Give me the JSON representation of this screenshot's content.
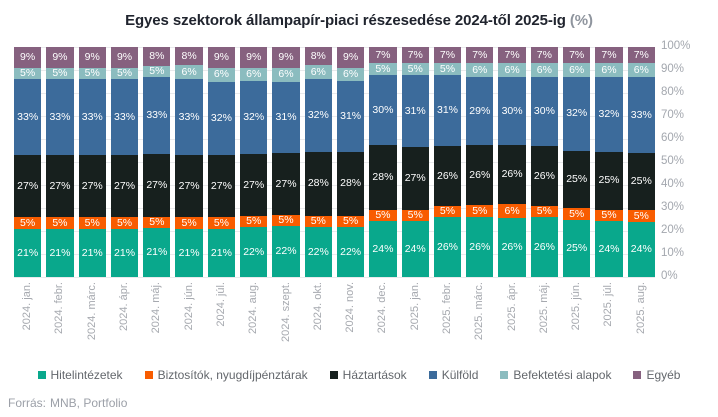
{
  "title": {
    "main": "Egyes szektorok állampapír-piaci részesedése 2024-től 2025-ig",
    "suffix": "(%)"
  },
  "source": {
    "label": "Forrás:",
    "value": "MNB, Portfolio"
  },
  "colors": {
    "background": "#ffffff",
    "title_text": "#20242e",
    "axis_text": "#a3a7ae",
    "gridline": "#e9eaec",
    "segment_label": "#ffffff"
  },
  "chart_data": {
    "type": "bar",
    "variant": "stacked-100",
    "grid": true,
    "legend_position": "bottom",
    "yaxis_side": "right",
    "ylim": [
      0,
      100
    ],
    "yticks": [
      "100%",
      "90%",
      "80%",
      "70%",
      "60%",
      "50%",
      "40%",
      "30%",
      "20%",
      "10%",
      "0%"
    ],
    "categories": [
      "2024. jan.",
      "2024. febr.",
      "2024. márc.",
      "2024. ápr.",
      "2024. máj.",
      "2024. jún.",
      "2024. júl.",
      "2024. aug.",
      "2024. szept.",
      "2024. okt.",
      "2024. nov.",
      "2024. dec.",
      "2025. jan.",
      "2025. febr.",
      "2025. márc.",
      "2025. ápr.",
      "2025. máj.",
      "2025. jún.",
      "2025. júl.",
      "2025. aug."
    ],
    "series": [
      {
        "name": "Hitelintézetek",
        "color": "#09a88c",
        "values": [
          21,
          21,
          21,
          21,
          21,
          21,
          21,
          22,
          22,
          22,
          22,
          24,
          24,
          26,
          26,
          26,
          26,
          25,
          24,
          24
        ]
      },
      {
        "name": "Biztosítók, nyugdíjpénztárak",
        "color": "#f85c00",
        "values": [
          5,
          5,
          5,
          5,
          5,
          5,
          5,
          5,
          5,
          5,
          5,
          5,
          5,
          5,
          5,
          6,
          5,
          5,
          5,
          5
        ]
      },
      {
        "name": "Háztartások",
        "color": "#17201e",
        "values": [
          27,
          27,
          27,
          27,
          27,
          27,
          27,
          27,
          27,
          28,
          28,
          28,
          27,
          26,
          26,
          26,
          26,
          25,
          25,
          25
        ]
      },
      {
        "name": "Külföld",
        "color": "#3c6b9b",
        "values": [
          33,
          33,
          33,
          33,
          33,
          33,
          32,
          32,
          31,
          32,
          31,
          30,
          31,
          31,
          29,
          30,
          30,
          32,
          32,
          33
        ]
      },
      {
        "name": "Befektetési alapok",
        "color": "#8bbcbf",
        "values": [
          5,
          5,
          5,
          5,
          5,
          6,
          6,
          6,
          6,
          6,
          6,
          5,
          5,
          5,
          6,
          6,
          6,
          6,
          6,
          6
        ]
      },
      {
        "name": "Egyéb",
        "color": "#86617f",
        "values": [
          9,
          9,
          9,
          9,
          8,
          8,
          9,
          9,
          9,
          8,
          9,
          7,
          7,
          7,
          7,
          7,
          7,
          7,
          7,
          7
        ]
      }
    ],
    "value_suffix": "%"
  }
}
